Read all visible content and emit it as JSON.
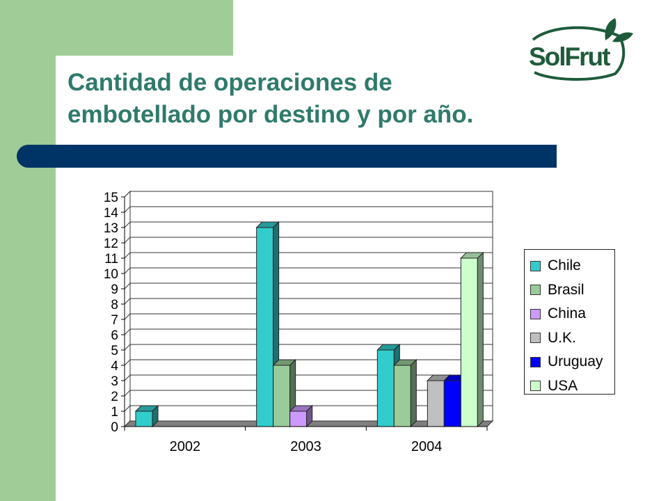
{
  "slide": {
    "title_line1": "Cantidad de operaciones de",
    "title_line2": "embotellado por destino y por año.",
    "logo_text": "SolFrut",
    "colors": {
      "side": "#9fcc97",
      "band": "#003466",
      "title": "#2f7a6c",
      "logo": "#1e5b3a"
    }
  },
  "chart_data": {
    "type": "bar",
    "title": "",
    "xlabel": "",
    "ylabel": "",
    "ylim": [
      0,
      15
    ],
    "yticks": [
      "0",
      "1",
      "2",
      "3",
      "4",
      "5",
      "6",
      "7",
      "8",
      "9",
      "10",
      "11",
      "12",
      "13",
      "14",
      "15"
    ],
    "categories": [
      "2002",
      "2003",
      "2004"
    ],
    "series": [
      {
        "name": "Chile",
        "color": "#33cccc",
        "values": [
          1,
          13,
          5
        ]
      },
      {
        "name": "Brasil",
        "color": "#99cc99",
        "values": [
          0,
          4,
          4
        ]
      },
      {
        "name": "China",
        "color": "#cc99ff",
        "values": [
          0,
          1,
          0
        ]
      },
      {
        "name": "U.K.",
        "color": "#c0c0c0",
        "values": [
          0,
          0,
          3
        ]
      },
      {
        "name": "Uruguay",
        "color": "#0000ff",
        "values": [
          0,
          0,
          3
        ]
      },
      {
        "name": "USA",
        "color": "#ccffcc",
        "values": [
          0,
          0,
          11
        ]
      }
    ],
    "grid": true,
    "style": "3d",
    "legend_position": "right"
  }
}
